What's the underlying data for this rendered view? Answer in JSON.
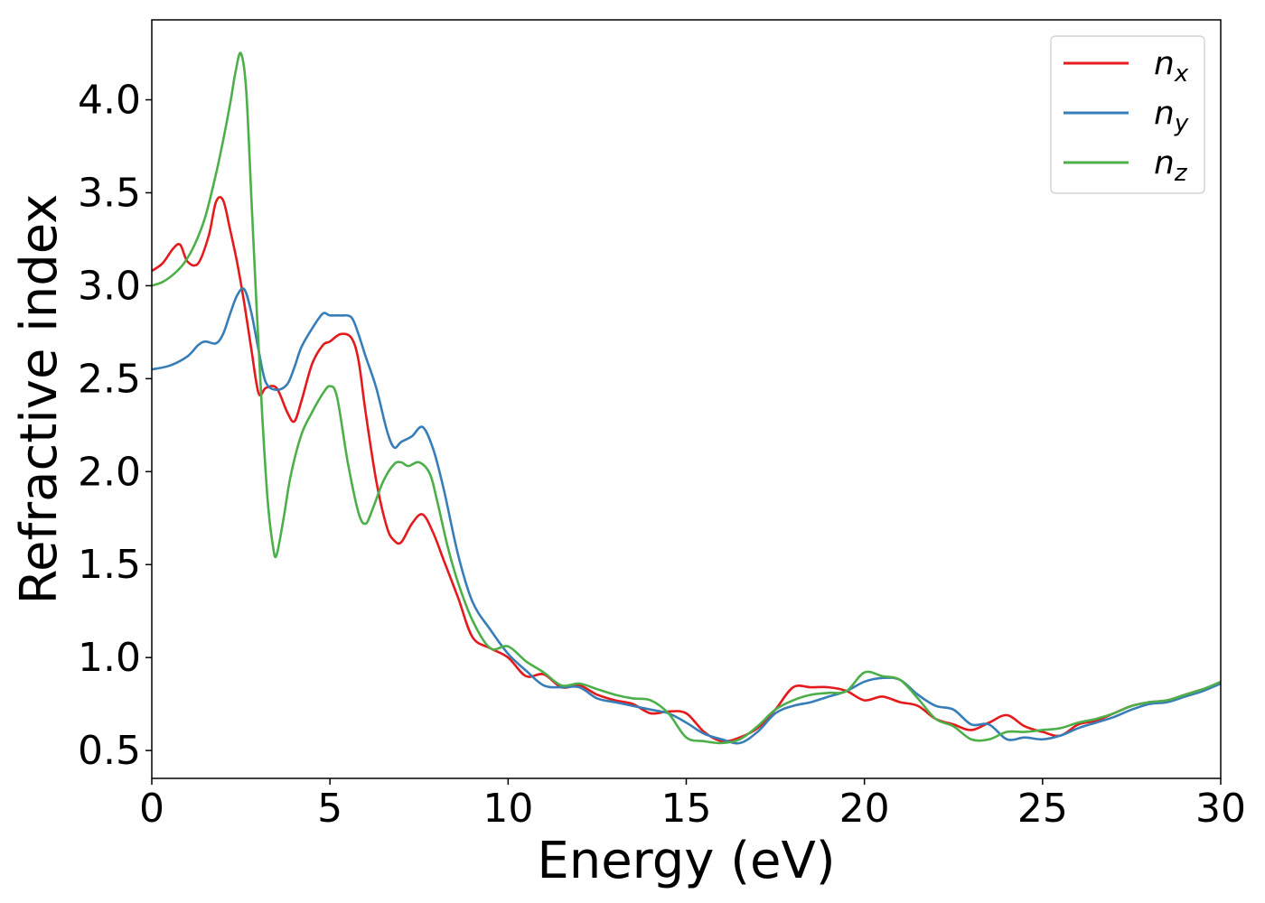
{
  "chart_data": {
    "type": "line",
    "xlabel": "Energy (eV)",
    "ylabel": "Refractive index",
    "xlim": [
      0,
      30
    ],
    "ylim": [
      0.35,
      4.43
    ],
    "xticks": [
      0,
      5,
      10,
      15,
      20,
      25,
      30
    ],
    "xtick_labels": [
      "0",
      "5",
      "10",
      "15",
      "20",
      "25",
      "30"
    ],
    "yticks": [
      0.5,
      1.0,
      1.5,
      2.0,
      2.5,
      3.0,
      3.5,
      4.0
    ],
    "ytick_labels": [
      "0.5",
      "1.0",
      "1.5",
      "2.0",
      "2.5",
      "3.0",
      "3.5",
      "4.0"
    ],
    "grid": false,
    "legend_position": "top-right",
    "series": [
      {
        "name": "n",
        "subscript": "x",
        "color": "#e41a1c",
        "x": [
          0,
          0.3,
          0.6,
          0.8,
          1.0,
          1.3,
          1.6,
          1.8,
          2.0,
          2.2,
          2.4,
          2.6,
          2.8,
          3.0,
          3.2,
          3.5,
          3.8,
          4.0,
          4.2,
          4.5,
          4.8,
          5.0,
          5.3,
          5.6,
          5.8,
          6.0,
          6.3,
          6.6,
          6.8,
          7.0,
          7.3,
          7.6,
          7.9,
          8.2,
          8.6,
          9.0,
          9.5,
          10.0,
          10.5,
          11.0,
          11.5,
          12.0,
          12.5,
          13.0,
          13.5,
          14.0,
          14.5,
          15.0,
          15.5,
          16.0,
          16.5,
          17.0,
          17.5,
          18.0,
          18.5,
          19.0,
          19.5,
          20.0,
          20.5,
          21.0,
          21.5,
          22.0,
          22.5,
          23.0,
          23.5,
          24.0,
          24.5,
          25.0,
          25.5,
          26.0,
          26.5,
          27.0,
          27.5,
          28.0,
          28.5,
          29.0,
          29.5,
          30.0
        ],
        "values": [
          3.08,
          3.12,
          3.2,
          3.22,
          3.13,
          3.12,
          3.27,
          3.45,
          3.46,
          3.3,
          3.12,
          2.9,
          2.65,
          2.42,
          2.45,
          2.45,
          2.32,
          2.27,
          2.38,
          2.58,
          2.68,
          2.7,
          2.74,
          2.72,
          2.6,
          2.32,
          1.95,
          1.7,
          1.63,
          1.62,
          1.72,
          1.77,
          1.67,
          1.52,
          1.32,
          1.11,
          1.05,
          1.0,
          0.9,
          0.91,
          0.84,
          0.85,
          0.8,
          0.77,
          0.75,
          0.7,
          0.71,
          0.7,
          0.6,
          0.55,
          0.57,
          0.62,
          0.72,
          0.84,
          0.84,
          0.84,
          0.82,
          0.77,
          0.79,
          0.76,
          0.74,
          0.67,
          0.64,
          0.61,
          0.65,
          0.69,
          0.63,
          0.6,
          0.58,
          0.64,
          0.66,
          0.7,
          0.74,
          0.76,
          0.77,
          0.8,
          0.83,
          0.86
        ]
      },
      {
        "name": "n",
        "subscript": "y",
        "color": "#377eb8",
        "x": [
          0,
          0.5,
          1.0,
          1.3,
          1.5,
          1.8,
          2.0,
          2.2,
          2.4,
          2.6,
          2.8,
          3.0,
          3.2,
          3.5,
          3.8,
          4.0,
          4.2,
          4.5,
          4.8,
          5.0,
          5.3,
          5.6,
          5.8,
          6.0,
          6.3,
          6.6,
          6.8,
          7.0,
          7.3,
          7.6,
          7.9,
          8.2,
          8.6,
          9.0,
          9.5,
          10.0,
          10.5,
          11.0,
          11.5,
          12.0,
          12.5,
          13.0,
          13.5,
          14.0,
          14.5,
          15.0,
          15.5,
          16.0,
          16.5,
          17.0,
          17.5,
          18.0,
          18.5,
          19.0,
          19.5,
          20.0,
          20.5,
          21.0,
          21.5,
          22.0,
          22.5,
          23.0,
          23.5,
          24.0,
          24.5,
          25.0,
          25.5,
          26.0,
          26.5,
          27.0,
          27.5,
          28.0,
          28.5,
          29.0,
          29.5,
          30.0
        ],
        "values": [
          2.55,
          2.57,
          2.62,
          2.68,
          2.7,
          2.69,
          2.74,
          2.85,
          2.95,
          2.98,
          2.85,
          2.65,
          2.48,
          2.44,
          2.47,
          2.56,
          2.67,
          2.77,
          2.85,
          2.84,
          2.84,
          2.83,
          2.74,
          2.62,
          2.45,
          2.22,
          2.13,
          2.16,
          2.19,
          2.24,
          2.12,
          1.9,
          1.55,
          1.3,
          1.15,
          1.02,
          0.93,
          0.85,
          0.84,
          0.84,
          0.78,
          0.76,
          0.74,
          0.72,
          0.7,
          0.65,
          0.59,
          0.56,
          0.54,
          0.6,
          0.7,
          0.74,
          0.76,
          0.79,
          0.82,
          0.87,
          0.89,
          0.88,
          0.8,
          0.74,
          0.72,
          0.64,
          0.64,
          0.56,
          0.57,
          0.56,
          0.58,
          0.62,
          0.65,
          0.68,
          0.72,
          0.75,
          0.76,
          0.79,
          0.82,
          0.86
        ]
      },
      {
        "name": "n",
        "subscript": "z",
        "color": "#4daf4a",
        "x": [
          0,
          0.3,
          0.6,
          0.9,
          1.2,
          1.5,
          1.8,
          2.0,
          2.2,
          2.35,
          2.5,
          2.65,
          2.8,
          2.95,
          3.1,
          3.25,
          3.4,
          3.5,
          3.7,
          3.9,
          4.2,
          4.5,
          4.8,
          5.0,
          5.2,
          5.5,
          5.8,
          6.0,
          6.2,
          6.5,
          6.8,
          7.0,
          7.2,
          7.5,
          7.8,
          8.0,
          8.3,
          8.6,
          9.0,
          9.5,
          10.0,
          10.5,
          11.0,
          11.5,
          12.0,
          12.5,
          13.0,
          13.5,
          14.0,
          14.5,
          15.0,
          15.5,
          16.0,
          16.5,
          17.0,
          17.5,
          18.0,
          18.5,
          19.0,
          19.5,
          20.0,
          20.5,
          21.0,
          21.5,
          22.0,
          22.5,
          23.0,
          23.5,
          24.0,
          24.5,
          25.0,
          25.5,
          26.0,
          26.5,
          27.0,
          27.5,
          28.0,
          28.5,
          29.0,
          29.5,
          30.0
        ],
        "values": [
          3.0,
          3.02,
          3.06,
          3.12,
          3.22,
          3.37,
          3.6,
          3.78,
          3.98,
          4.15,
          4.25,
          4.05,
          3.45,
          2.85,
          2.3,
          1.85,
          1.6,
          1.55,
          1.75,
          1.98,
          2.2,
          2.32,
          2.42,
          2.46,
          2.4,
          2.05,
          1.78,
          1.72,
          1.8,
          1.95,
          2.04,
          2.05,
          2.03,
          2.05,
          1.99,
          1.85,
          1.6,
          1.4,
          1.2,
          1.05,
          1.06,
          0.98,
          0.92,
          0.85,
          0.86,
          0.83,
          0.8,
          0.78,
          0.77,
          0.7,
          0.57,
          0.55,
          0.54,
          0.56,
          0.63,
          0.72,
          0.77,
          0.8,
          0.81,
          0.82,
          0.92,
          0.9,
          0.88,
          0.78,
          0.67,
          0.63,
          0.56,
          0.56,
          0.6,
          0.6,
          0.61,
          0.62,
          0.65,
          0.67,
          0.7,
          0.74,
          0.76,
          0.77,
          0.8,
          0.83,
          0.87
        ]
      }
    ]
  }
}
